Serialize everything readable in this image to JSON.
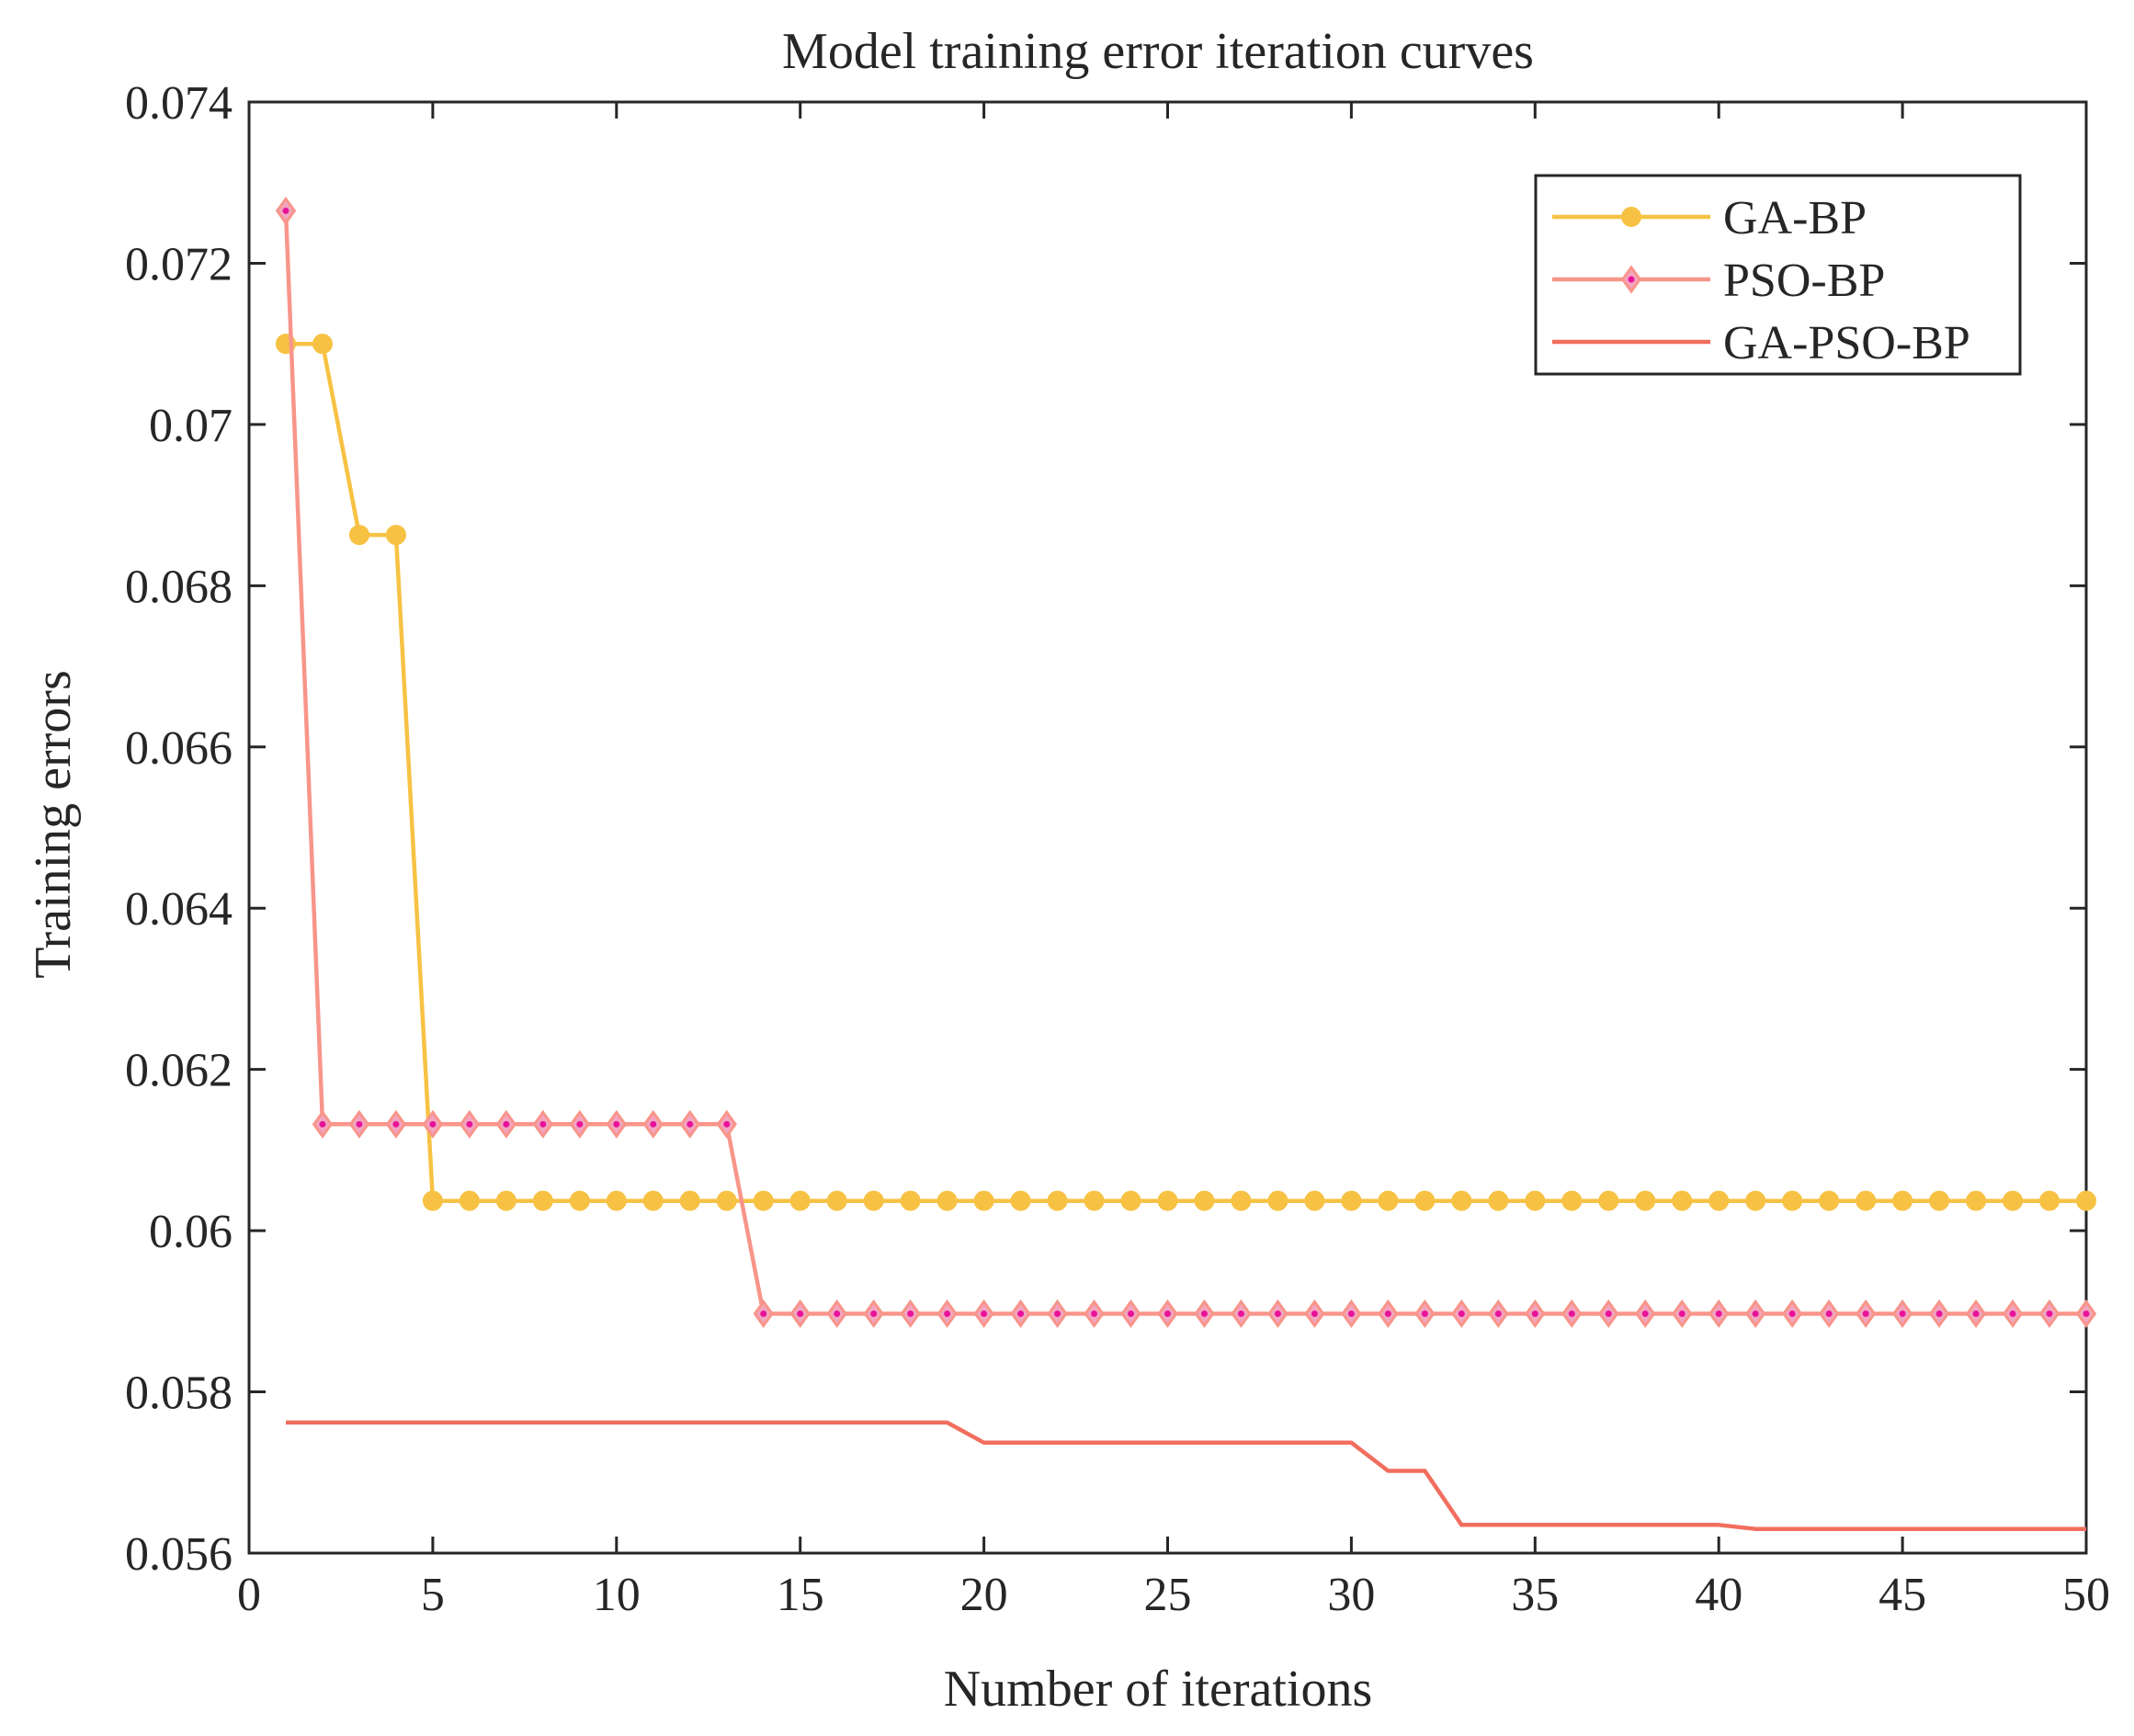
{
  "chart_data": {
    "type": "line",
    "title": "Model training error iteration curves",
    "xlabel": "Number of iterations",
    "ylabel": "Training errors",
    "xlim": [
      0,
      50
    ],
    "ylim": [
      0.056,
      0.074
    ],
    "xticks": [
      "0",
      "5",
      "10",
      "15",
      "20",
      "25",
      "30",
      "35",
      "40",
      "45",
      "50"
    ],
    "xtick_values": [
      0,
      5,
      10,
      15,
      20,
      25,
      30,
      35,
      40,
      45,
      50
    ],
    "yticks": [
      "0.056",
      "0.058",
      "0.06",
      "0.062",
      "0.064",
      "0.066",
      "0.068",
      "0.07",
      "0.072",
      "0.074"
    ],
    "ytick_values": [
      0.056,
      0.058,
      0.06,
      0.062,
      0.064,
      0.066,
      0.068,
      0.07,
      0.072,
      0.074
    ],
    "grid": false,
    "legend_position": "top-right",
    "x": [
      1,
      2,
      3,
      4,
      5,
      6,
      7,
      8,
      9,
      10,
      11,
      12,
      13,
      14,
      15,
      16,
      17,
      18,
      19,
      20,
      21,
      22,
      23,
      24,
      25,
      26,
      27,
      28,
      29,
      30,
      31,
      32,
      33,
      34,
      35,
      36,
      37,
      38,
      39,
      40,
      41,
      42,
      43,
      44,
      45,
      46,
      47,
      48,
      49,
      50
    ],
    "series": [
      {
        "name": "GA-BP",
        "color": "#F7C244",
        "marker": "circle",
        "values": [
          0.071,
          0.071,
          0.06863,
          0.06863,
          0.06037,
          0.06037,
          0.06037,
          0.06037,
          0.06037,
          0.06037,
          0.06037,
          0.06037,
          0.06037,
          0.06037,
          0.06037,
          0.06037,
          0.06037,
          0.06037,
          0.06037,
          0.06037,
          0.06037,
          0.06037,
          0.06037,
          0.06037,
          0.06037,
          0.06037,
          0.06037,
          0.06037,
          0.06037,
          0.06037,
          0.06037,
          0.06037,
          0.06037,
          0.06037,
          0.06037,
          0.06037,
          0.06037,
          0.06037,
          0.06037,
          0.06037,
          0.06037,
          0.06037,
          0.06037,
          0.06037,
          0.06037,
          0.06037,
          0.06037,
          0.06037,
          0.06037,
          0.06037
        ]
      },
      {
        "name": "PSO-BP",
        "color": "#F8958A",
        "marker": "diamond",
        "marker_fill": "#F2A4C0",
        "marker_dot": "#E8139A",
        "values": [
          0.07265,
          0.06132,
          0.06132,
          0.06132,
          0.06132,
          0.06132,
          0.06132,
          0.06132,
          0.06132,
          0.06132,
          0.06132,
          0.06132,
          0.06132,
          0.05897,
          0.05897,
          0.05897,
          0.05897,
          0.05897,
          0.05897,
          0.05897,
          0.05897,
          0.05897,
          0.05897,
          0.05897,
          0.05897,
          0.05897,
          0.05897,
          0.05897,
          0.05897,
          0.05897,
          0.05897,
          0.05897,
          0.05897,
          0.05897,
          0.05897,
          0.05897,
          0.05897,
          0.05897,
          0.05897,
          0.05897,
          0.05897,
          0.05897,
          0.05897,
          0.05897,
          0.05897,
          0.05897,
          0.05897,
          0.05897,
          0.05897,
          0.05897
        ]
      },
      {
        "name": "GA-PSO-BP",
        "color": "#F16E5E",
        "marker": "none",
        "values": [
          0.05762,
          0.05762,
          0.05762,
          0.05762,
          0.05762,
          0.05762,
          0.05762,
          0.05762,
          0.05762,
          0.05762,
          0.05762,
          0.05762,
          0.05762,
          0.05762,
          0.05762,
          0.05762,
          0.05762,
          0.05762,
          0.05762,
          0.05737,
          0.05737,
          0.05737,
          0.05737,
          0.05737,
          0.05737,
          0.05737,
          0.05737,
          0.05737,
          0.05737,
          0.05737,
          0.05702,
          0.05702,
          0.05635,
          0.05635,
          0.05635,
          0.05635,
          0.05635,
          0.05635,
          0.05635,
          0.05635,
          0.0563,
          0.0563,
          0.0563,
          0.0563,
          0.0563,
          0.0563,
          0.0563,
          0.0563,
          0.0563,
          0.0563
        ]
      }
    ]
  }
}
